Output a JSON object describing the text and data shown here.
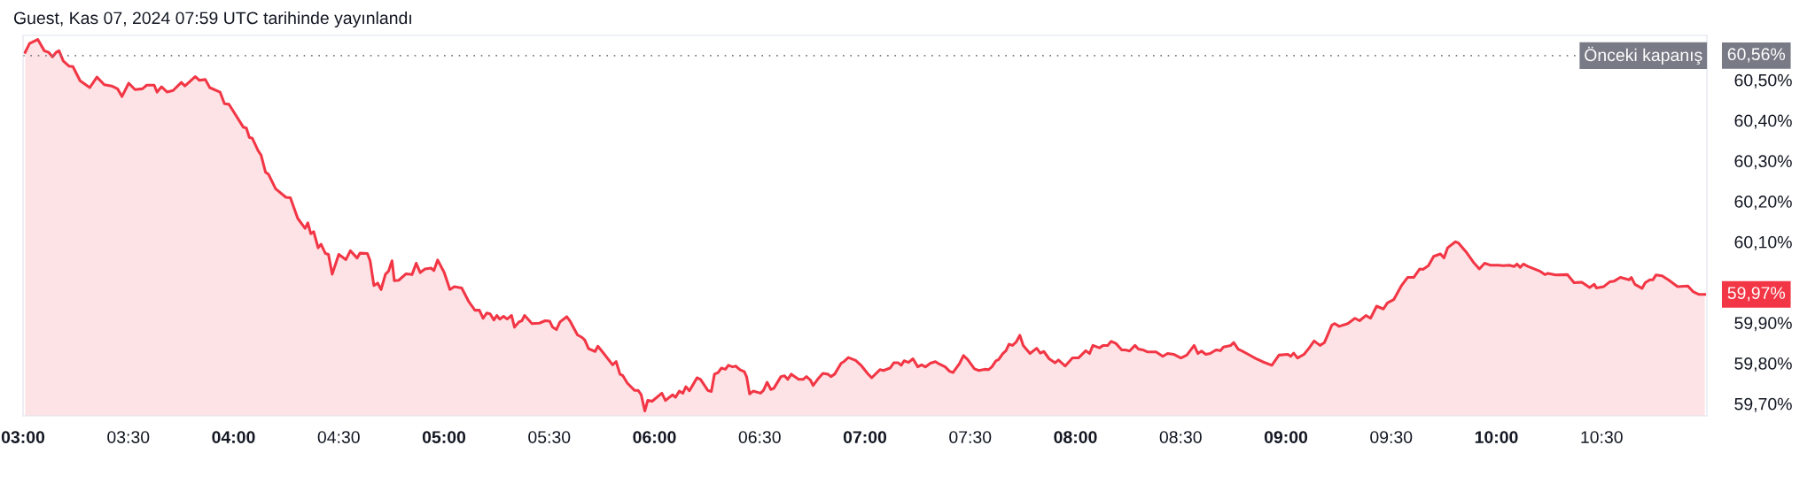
{
  "chart_data": {
    "type": "area",
    "title": "Guest, Kas 07, 2024 07:59 UTC tarihinde yayınlandı",
    "series": [
      {
        "color": "#f23645",
        "x": [
          3.01,
          3.031,
          3.07,
          3.101,
          3.122,
          3.14,
          3.157,
          3.171,
          3.191,
          3.219,
          3.237,
          3.271,
          3.317,
          3.351,
          3.386,
          3.421,
          3.449,
          3.47,
          3.502,
          3.532,
          3.567,
          3.588,
          3.623,
          3.637,
          3.658,
          3.685,
          3.713,
          3.752,
          3.769,
          3.818,
          3.838,
          3.866,
          3.887,
          3.936,
          3.957,
          3.978,
          4.047,
          4.061,
          4.075,
          4.089,
          4.117,
          4.131,
          4.152,
          4.166,
          4.2,
          4.249,
          4.27,
          4.305,
          4.34,
          4.353,
          4.367,
          4.381,
          4.402,
          4.416,
          4.437,
          4.451,
          4.469,
          4.5,
          4.534,
          4.555,
          4.587,
          4.601,
          4.636,
          4.649,
          4.667,
          4.685,
          4.701,
          4.722,
          4.736,
          4.753,
          4.764,
          4.785,
          4.82,
          4.848,
          4.868,
          4.887,
          4.91,
          4.938,
          4.952,
          4.97,
          5.001,
          5.028,
          5.049,
          5.084,
          5.119,
          5.147,
          5.168,
          5.186,
          5.203,
          5.219,
          5.237,
          5.251,
          5.265,
          5.283,
          5.3,
          5.321,
          5.335,
          5.356,
          5.37,
          5.383,
          5.418,
          5.453,
          5.481,
          5.502,
          5.516,
          5.534,
          5.551,
          5.583,
          5.599,
          5.634,
          5.655,
          5.669,
          5.687,
          5.718,
          5.731,
          5.759,
          5.801,
          5.818,
          5.836,
          5.85,
          5.871,
          5.905,
          5.922,
          5.937,
          5.954,
          5.968,
          5.989,
          6.035,
          6.052,
          6.086,
          6.1,
          6.118,
          6.135,
          6.149,
          6.166,
          6.202,
          6.219,
          6.253,
          6.27,
          6.285,
          6.302,
          6.318,
          6.337,
          6.351,
          6.372,
          6.386,
          6.406,
          6.427,
          6.438,
          6.452,
          6.469,
          6.504,
          6.518,
          6.535,
          6.553,
          6.567,
          6.601,
          6.618,
          6.633,
          6.65,
          6.685,
          6.706,
          6.722,
          6.74,
          6.754,
          6.775,
          6.8,
          6.824,
          6.838,
          6.856,
          6.887,
          6.9,
          6.921,
          6.956,
          6.981,
          7.012,
          7.032,
          7.071,
          7.088,
          7.119,
          7.137,
          7.158,
          7.172,
          7.186,
          7.207,
          7.228,
          7.251,
          7.269,
          7.287,
          7.311,
          7.335,
          7.353,
          7.381,
          7.402,
          7.418,
          7.45,
          7.468,
          7.488,
          7.52,
          7.541,
          7.569,
          7.587,
          7.603,
          7.622,
          7.635,
          7.655,
          7.67,
          7.684,
          7.701,
          7.719,
          7.736,
          7.752,
          7.784,
          7.816,
          7.833,
          7.85,
          7.875,
          7.903,
          7.919,
          7.951,
          7.986,
          8.014,
          8.049,
          8.067,
          8.083,
          8.114,
          8.132,
          8.153,
          8.17,
          8.192,
          8.22,
          8.237,
          8.257,
          8.283,
          8.299,
          8.32,
          8.341,
          8.383,
          8.415,
          8.438,
          8.466,
          8.501,
          8.529,
          8.564,
          8.582,
          8.599,
          8.619,
          8.64,
          8.668,
          8.689,
          8.703,
          8.738,
          8.752,
          8.773,
          8.793,
          8.821,
          8.856,
          8.888,
          8.933,
          8.967,
          9.009,
          9.023,
          9.037,
          9.055,
          9.086,
          9.111,
          9.134,
          9.162,
          9.183,
          9.197,
          9.218,
          9.232,
          9.253,
          9.294,
          9.328,
          9.35,
          9.38,
          9.402,
          9.431,
          9.463,
          9.482,
          9.512,
          9.548,
          9.578,
          9.607,
          9.636,
          9.651,
          9.677,
          9.702,
          9.734,
          9.751,
          9.768,
          9.805,
          9.82,
          9.856,
          9.893,
          9.919,
          9.944,
          9.974,
          10.01,
          10.032,
          10.062,
          10.084,
          10.098,
          10.113,
          10.128,
          10.15,
          10.208,
          10.23,
          10.245,
          10.281,
          10.337,
          10.369,
          10.406,
          10.443,
          10.465,
          10.475,
          10.509,
          10.538,
          10.56,
          10.589,
          10.631,
          10.641,
          10.658,
          10.692,
          10.707,
          10.729,
          10.743,
          10.758,
          10.787,
          10.817,
          10.861,
          10.909,
          10.934,
          10.963,
          10.99
        ],
        "values": [
          60.568,
          60.59,
          60.6,
          60.572,
          60.568,
          60.557,
          60.568,
          60.572,
          60.547,
          60.534,
          60.533,
          60.498,
          60.481,
          60.507,
          60.488,
          60.485,
          60.478,
          60.459,
          60.492,
          60.476,
          60.478,
          60.487,
          60.487,
          60.47,
          60.483,
          60.47,
          60.474,
          60.494,
          60.485,
          60.508,
          60.499,
          60.501,
          60.481,
          60.47,
          60.441,
          60.44,
          60.383,
          60.381,
          60.358,
          60.356,
          60.325,
          60.314,
          60.272,
          60.267,
          60.231,
          60.21,
          60.209,
          60.158,
          60.133,
          60.147,
          60.12,
          60.125,
          60.085,
          60.094,
          60.071,
          60.069,
          60.02,
          60.069,
          60.056,
          60.078,
          60.06,
          60.072,
          60.071,
          60.053,
          59.992,
          59.998,
          59.982,
          60.02,
          60.027,
          60.053,
          60.004,
          60.005,
          60.021,
          60.019,
          60.047,
          60.024,
          60.033,
          60.035,
          60.029,
          60.055,
          60.024,
          59.982,
          59.989,
          59.986,
          59.951,
          59.931,
          59.931,
          59.911,
          59.924,
          59.922,
          59.907,
          59.918,
          59.909,
          59.916,
          59.909,
          59.918,
          59.889,
          59.902,
          59.905,
          59.918,
          59.898,
          59.899,
          59.905,
          59.904,
          59.889,
          59.883,
          59.902,
          59.915,
          59.904,
          59.87,
          59.864,
          59.857,
          59.836,
          59.829,
          59.842,
          59.824,
          59.796,
          59.804,
          59.773,
          59.769,
          59.751,
          59.733,
          59.733,
          59.722,
          59.682,
          59.708,
          59.706,
          59.726,
          59.708,
          59.722,
          59.716,
          59.731,
          59.726,
          59.742,
          59.732,
          59.764,
          59.76,
          59.733,
          59.73,
          59.773,
          59.777,
          59.788,
          59.785,
          59.795,
          59.791,
          59.793,
          59.784,
          59.779,
          59.766,
          59.724,
          59.731,
          59.726,
          59.733,
          59.753,
          59.735,
          59.738,
          59.767,
          59.769,
          59.76,
          59.773,
          59.76,
          59.76,
          59.767,
          59.759,
          59.745,
          59.76,
          59.775,
          59.773,
          59.767,
          59.773,
          59.8,
          59.804,
          59.814,
          59.807,
          59.795,
          59.775,
          59.764,
          59.784,
          59.782,
          59.788,
          59.801,
          59.801,
          59.795,
          59.806,
          59.802,
          59.811,
          59.791,
          59.796,
          59.791,
          59.8,
          59.804,
          59.798,
          59.791,
          59.78,
          59.777,
          59.8,
          59.819,
          59.809,
          59.786,
          59.782,
          59.785,
          59.784,
          59.791,
          59.806,
          59.809,
          59.824,
          59.831,
          59.847,
          59.844,
          59.853,
          59.869,
          59.844,
          59.824,
          59.837,
          59.825,
          59.829,
          59.811,
          59.801,
          59.808,
          59.793,
          59.813,
          59.813,
          59.831,
          59.824,
          59.844,
          59.838,
          59.844,
          59.844,
          59.854,
          59.849,
          59.833,
          59.833,
          59.83,
          59.844,
          59.835,
          59.833,
          59.828,
          59.828,
          59.817,
          59.824,
          59.822,
          59.813,
          59.82,
          59.844,
          59.824,
          59.83,
          59.822,
          59.824,
          59.833,
          59.831,
          59.84,
          59.844,
          59.851,
          59.835,
          59.83,
          59.822,
          59.812,
          59.804,
          59.795,
          59.82,
          59.822,
          59.817,
          59.825,
          59.813,
          59.822,
          59.838,
          59.855,
          59.844,
          59.851,
          59.868,
          59.894,
          59.898,
          59.891,
          59.898,
          59.911,
          59.905,
          59.918,
          59.911,
          59.941,
          59.934,
          59.949,
          59.957,
          59.991,
          60.012,
          60.012,
          60.033,
          60.032,
          60.041,
          60.064,
          60.07,
          60.06,
          60.085,
          60.1,
          60.097,
          60.075,
          60.048,
          60.033,
          60.047,
          60.042,
          60.042,
          60.041,
          60.042,
          60.039,
          60.045,
          60.037,
          60.045,
          60.039,
          60.027,
          60.019,
          60.022,
          60.018,
          60.019,
          59.999,
          60.0,
          59.987,
          59.995,
          59.986,
          59.989,
          60.001,
          60.003,
          60.012,
          60.006,
          60.012,
          59.995,
          59.985,
          59.999,
          60.006,
          60.006,
          60.018,
          60.016,
          60.006,
          59.989,
          59.991,
          59.977,
          59.97,
          59.97
        ]
      }
    ],
    "xlim": [
      3.0,
      11.0
    ],
    "xticks": [
      {
        "value": 3.0,
        "label": "03:00"
      },
      {
        "value": 3.5,
        "label": "03:30"
      },
      {
        "value": 4.0,
        "label": "04:00"
      },
      {
        "value": 4.5,
        "label": "04:30"
      },
      {
        "value": 5.0,
        "label": "05:00"
      },
      {
        "value": 5.5,
        "label": "05:30"
      },
      {
        "value": 6.0,
        "label": "06:00"
      },
      {
        "value": 6.5,
        "label": "06:30"
      },
      {
        "value": 7.0,
        "label": "07:00"
      },
      {
        "value": 7.5,
        "label": "07:30"
      },
      {
        "value": 8.0,
        "label": "08:00"
      },
      {
        "value": 8.5,
        "label": "08:30"
      },
      {
        "value": 9.0,
        "label": "09:00"
      },
      {
        "value": 9.5,
        "label": "09:30"
      },
      {
        "value": 10.0,
        "label": "10:00"
      },
      {
        "value": 10.5,
        "label": "10:30"
      }
    ],
    "ylim": [
      59.67,
      60.61
    ],
    "yticks": [
      {
        "value": 59.7,
        "label": "59,70%"
      },
      {
        "value": 59.8,
        "label": "59,80%"
      },
      {
        "value": 59.9,
        "label": "59,90%"
      },
      {
        "value": 60.1,
        "label": "60,10%"
      },
      {
        "value": 60.2,
        "label": "60,20%"
      },
      {
        "value": 60.3,
        "label": "60,30%"
      },
      {
        "value": 60.4,
        "label": "60,40%"
      },
      {
        "value": 60.5,
        "label": "60,50%"
      }
    ],
    "ref_lines": [
      {
        "axis": "y",
        "value": 60.56,
        "label": "Önceki kapanış",
        "color": "#787b86",
        "line_style": "dotted"
      }
    ],
    "annotations": [
      "60,56%",
      "59,97%"
    ],
    "grid": false
  }
}
